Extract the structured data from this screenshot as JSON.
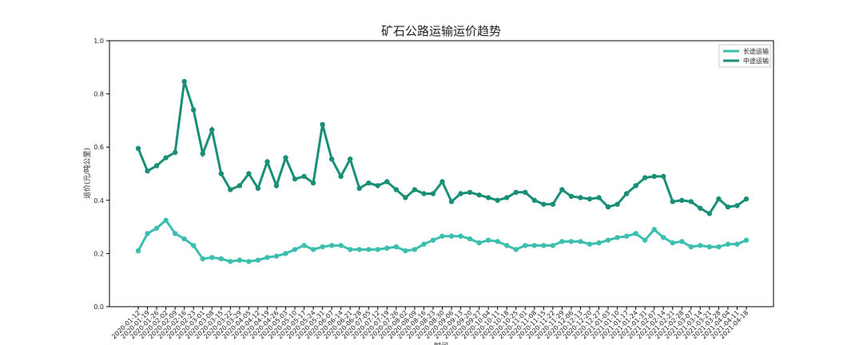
{
  "chart_data": {
    "type": "line",
    "title": "矿石公路运输运价趋势",
    "xlabel": "时间",
    "ylabel": "运价(元/吨公里)",
    "categories": [
      "2020-01-12",
      "2020-01-19",
      "2020-01-26",
      "2020-02-02",
      "2020-02-09",
      "2020-02-16",
      "2020-02-23",
      "2020-03-01",
      "2020-03-08",
      "2020-03-15",
      "2020-03-22",
      "2020-03-29",
      "2020-04-05",
      "2020-04-12",
      "2020-04-19",
      "2020-04-26",
      "2020-05-03",
      "2020-05-10",
      "2020-05-17",
      "2020-05-24",
      "2020-05-31",
      "2020-06-07",
      "2020-06-14",
      "2020-06-21",
      "2020-06-28",
      "2020-07-05",
      "2020-07-12",
      "2020-07-19",
      "2020-07-26",
      "2020-08-02",
      "2020-08-09",
      "2020-08-16",
      "2020-08-23",
      "2020-08-30",
      "2020-09-06",
      "2020-09-13",
      "2020-09-20",
      "2020-09-27",
      "2020-10-04",
      "2020-10-11",
      "2020-10-18",
      "2020-10-25",
      "2020-11-01",
      "2020-11-08",
      "2020-11-15",
      "2020-11-22",
      "2020-11-29",
      "2020-12-06",
      "2020-12-13",
      "2020-12-20",
      "2020-12-27",
      "2021-01-03",
      "2021-01-10",
      "2021-01-17",
      "2021-01-24",
      "2021-01-31",
      "2021-02-07",
      "2021-02-14",
      "2021-02-21",
      "2021-02-28",
      "2021-03-07",
      "2021-03-14",
      "2021-03-21",
      "2021-03-28",
      "2021-04-04",
      "2021-04-11",
      "2021-04-18"
    ],
    "series": [
      {
        "name": "长途运输",
        "color": "#3cbfae",
        "values": [
          0.21,
          0.275,
          0.295,
          0.325,
          0.275,
          0.255,
          0.23,
          0.18,
          0.185,
          0.18,
          0.17,
          0.175,
          0.17,
          0.175,
          0.185,
          0.19,
          0.2,
          0.215,
          0.23,
          0.215,
          0.225,
          0.23,
          0.23,
          0.215,
          0.215,
          0.215,
          0.215,
          0.22,
          0.225,
          0.21,
          0.215,
          0.235,
          0.25,
          0.265,
          0.265,
          0.265,
          0.255,
          0.24,
          0.25,
          0.245,
          0.23,
          0.215,
          0.23,
          0.23,
          0.23,
          0.23,
          0.245,
          0.245,
          0.245,
          0.235,
          0.24,
          0.25,
          0.26,
          0.265,
          0.275,
          0.25,
          0.29,
          0.26,
          0.24,
          0.245,
          0.225,
          0.23,
          0.225,
          0.225,
          0.235,
          0.235,
          0.25
        ]
      },
      {
        "name": "中途运输",
        "color": "#1a8f78",
        "values": [
          0.595,
          0.51,
          0.53,
          0.56,
          0.58,
          0.847,
          0.74,
          0.575,
          0.665,
          0.5,
          0.44,
          0.455,
          0.5,
          0.445,
          0.545,
          0.455,
          0.56,
          0.48,
          0.49,
          0.465,
          0.685,
          0.555,
          0.49,
          0.555,
          0.445,
          0.465,
          0.455,
          0.47,
          0.44,
          0.41,
          0.44,
          0.425,
          0.425,
          0.47,
          0.395,
          0.425,
          0.43,
          0.42,
          0.41,
          0.4,
          0.41,
          0.43,
          0.43,
          0.4,
          0.385,
          0.385,
          0.44,
          0.415,
          0.41,
          0.405,
          0.41,
          0.375,
          0.385,
          0.425,
          0.455,
          0.485,
          0.49,
          0.49,
          0.395,
          0.4,
          0.395,
          0.37,
          0.35,
          0.405,
          0.375,
          0.38,
          0.405
        ]
      }
    ],
    "ylim": [
      0,
      1
    ],
    "yticks": [
      {
        "value": 0,
        "label": "0.0"
      },
      {
        "value": 0.2,
        "label": "0.2"
      },
      {
        "value": 0.4,
        "label": "0.4"
      },
      {
        "value": 0.6,
        "label": "0.6"
      },
      {
        "value": 0.8,
        "label": "0.8"
      },
      {
        "value": 1,
        "label": "1.0"
      }
    ],
    "legend": "upper right"
  }
}
